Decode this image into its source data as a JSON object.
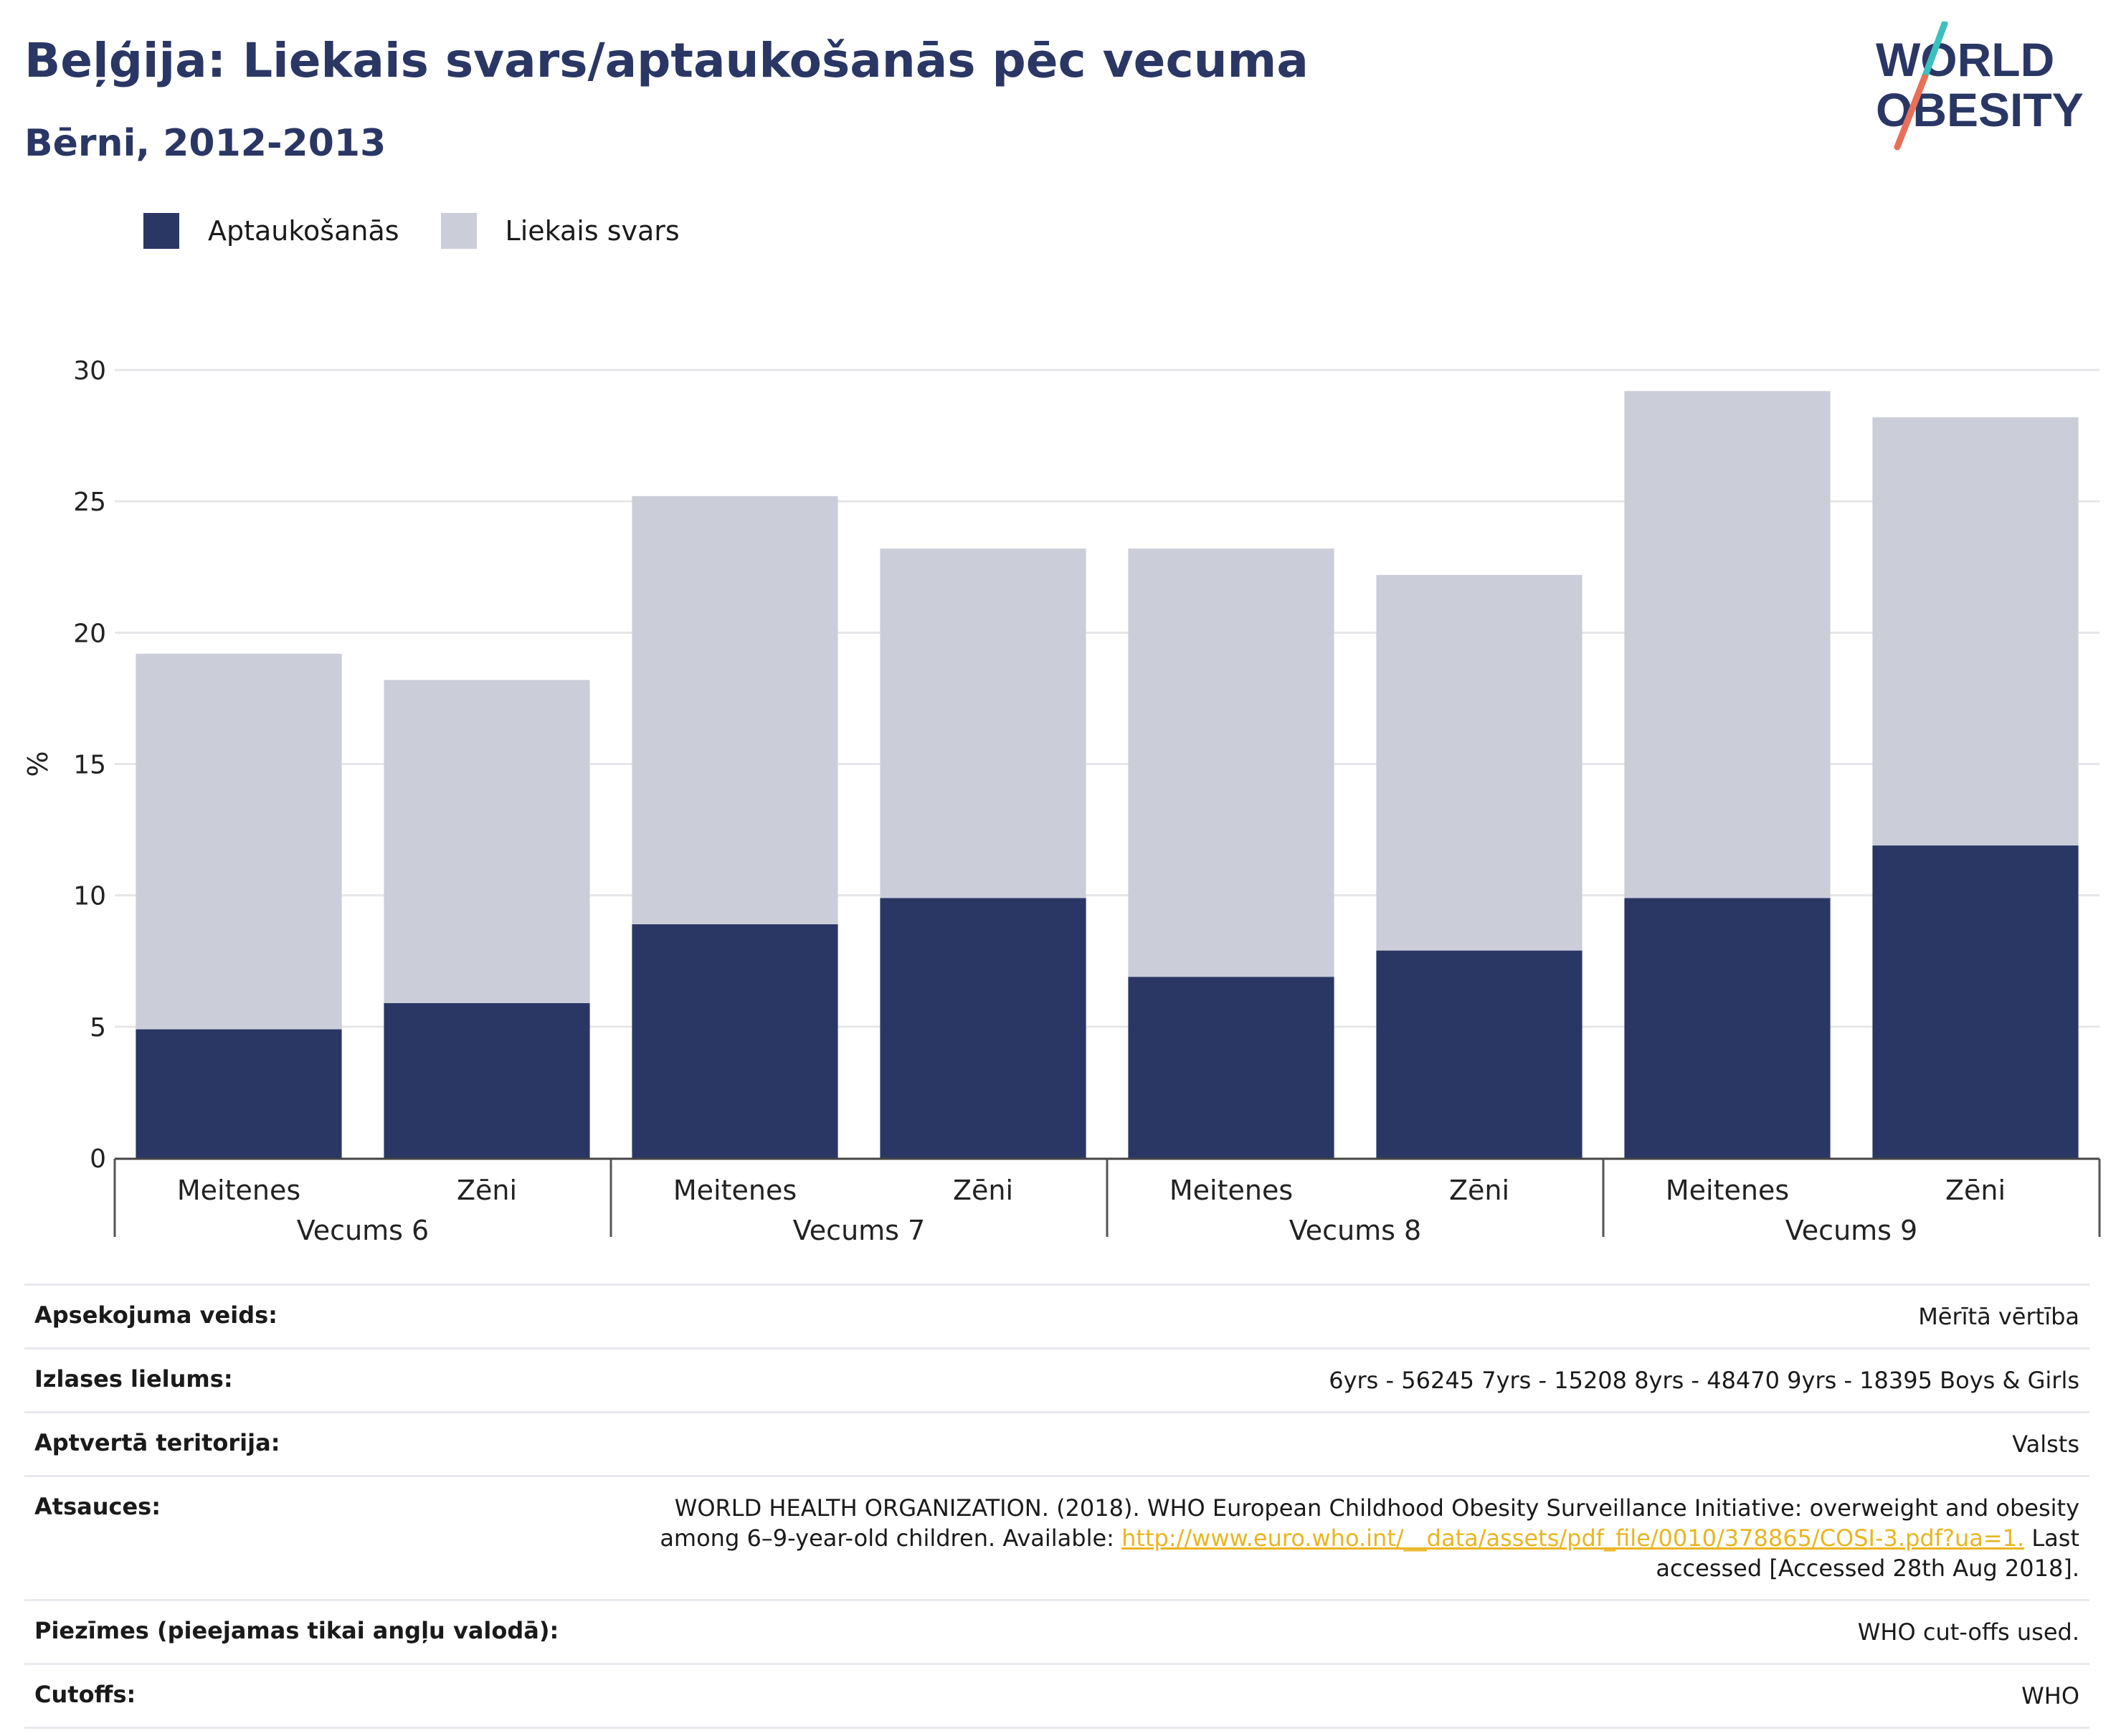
{
  "header": {
    "title": "Beļģija: Liekais svars/aptaukošanās pēc vecuma",
    "subtitle": "Bērni, 2012-2013",
    "logo_line1": "WORLD",
    "logo_line2": "OBESITY"
  },
  "legend": [
    {
      "label": "Aptaukošanās",
      "color": "#2a3765"
    },
    {
      "label": "Liekais svars",
      "color": "#cbcdd9"
    }
  ],
  "chart_data": {
    "type": "bar",
    "stacked": true,
    "ylabel": "%",
    "ylim": [
      0,
      30
    ],
    "yticks": [
      0,
      5,
      10,
      15,
      20,
      25,
      30
    ],
    "grid": true,
    "legend_position": "top-left",
    "groups": [
      "Vecums 6",
      "Vecums 7",
      "Vecums 8",
      "Vecums 9"
    ],
    "categories": [
      "Meitenes",
      "Zēni",
      "Meitenes",
      "Zēni",
      "Meitenes",
      "Zēni",
      "Meitenes",
      "Zēni"
    ],
    "series": [
      {
        "name": "Aptaukošanās",
        "color": "#2a3765",
        "values": [
          4.9,
          5.9,
          8.9,
          9.9,
          6.9,
          7.9,
          9.9,
          11.9
        ]
      },
      {
        "name": "Liekais svars",
        "color": "#cbcdd9",
        "values": [
          14.3,
          12.3,
          16.3,
          13.3,
          16.3,
          14.3,
          19.3,
          16.3
        ]
      }
    ]
  },
  "info": {
    "survey_type": {
      "label": "Apsekojuma veids:",
      "value": "Mērītā vērtība"
    },
    "sample_size": {
      "label": "Izlases lielums:",
      "value": "6yrs - 56245 7yrs - 15208 8yrs - 48470 9yrs - 18395 Boys & Girls"
    },
    "coverage": {
      "label": "Aptvertā teritorija:",
      "value": "Valsts"
    },
    "references": {
      "label": "Atsauces:",
      "text_before": "WORLD HEALTH ORGANIZATION. (2018). WHO European Childhood Obesity Surveillance Initiative: overweight and obesity among 6–9-year-old children. Available: ",
      "link": "http://www.euro.who.int/__data/assets/pdf_file/0010/378865/COSI-3.pdf?ua=1.",
      "text_after": " Last accessed [Accessed 28th Aug 2018]."
    },
    "notes": {
      "label": "Piezīmes (pieejamas tikai angļu valodā):",
      "value": "WHO cut-offs used."
    },
    "cutoffs": {
      "label": "Cutoffs:",
      "value": "WHO"
    }
  }
}
